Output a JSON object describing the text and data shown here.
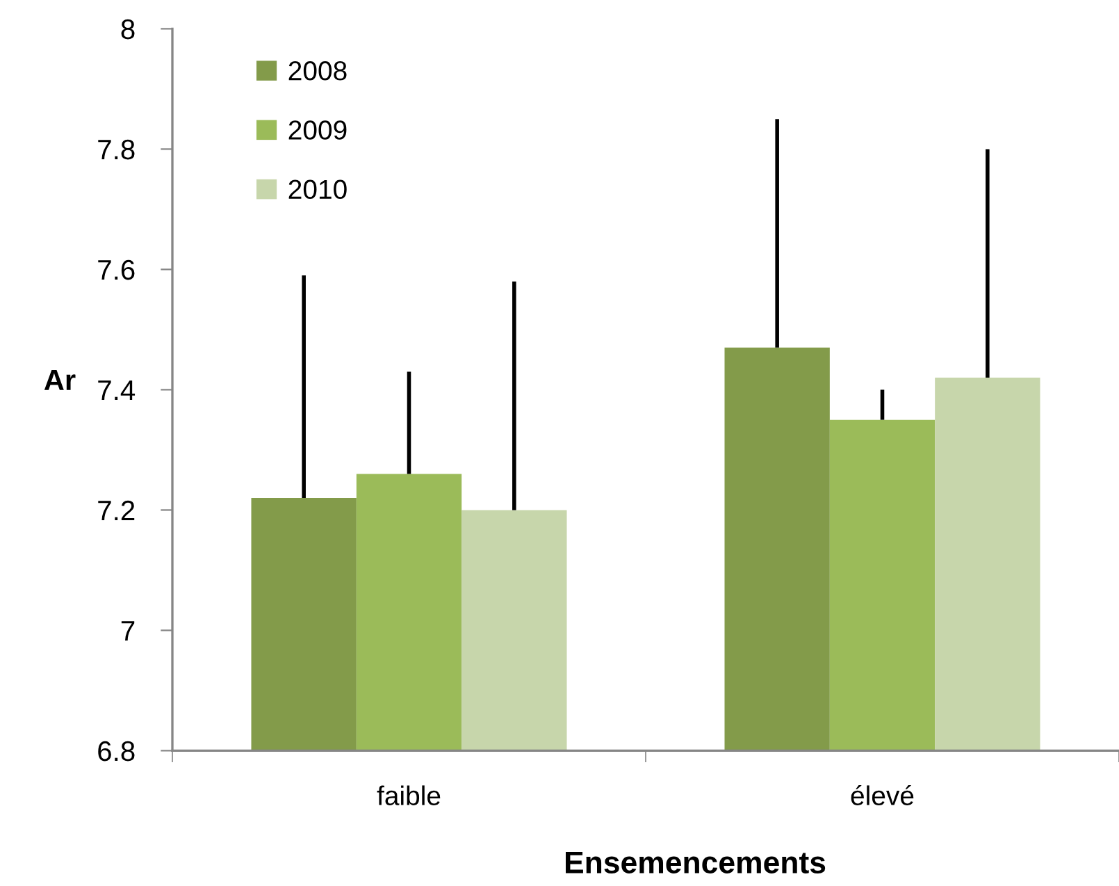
{
  "chart_data": {
    "type": "bar",
    "categories": [
      "faible",
      "élevé"
    ],
    "xlabel": "Ensemencements",
    "ylabel": "Ar",
    "series": [
      {
        "name": "2008",
        "color": "#839b4a",
        "values": [
          7.22,
          7.47
        ],
        "errors": [
          [
            7.22,
            7.59
          ],
          [
            7.47,
            7.85
          ]
        ]
      },
      {
        "name": "2009",
        "color": "#9bbb59",
        "values": [
          7.26,
          7.35
        ],
        "errors": [
          [
            7.26,
            7.43
          ],
          [
            7.35,
            7.4
          ]
        ]
      },
      {
        "name": "2010",
        "color": "#c7d6ab",
        "values": [
          7.2,
          7.42
        ],
        "errors": [
          [
            7.2,
            7.58
          ],
          [
            7.42,
            7.8
          ]
        ]
      }
    ],
    "ylim": [
      6.8,
      8
    ],
    "yticks": [
      6.8,
      7,
      7.2,
      7.4,
      7.6,
      7.8,
      8
    ],
    "legend": "top left",
    "grid": false
  }
}
